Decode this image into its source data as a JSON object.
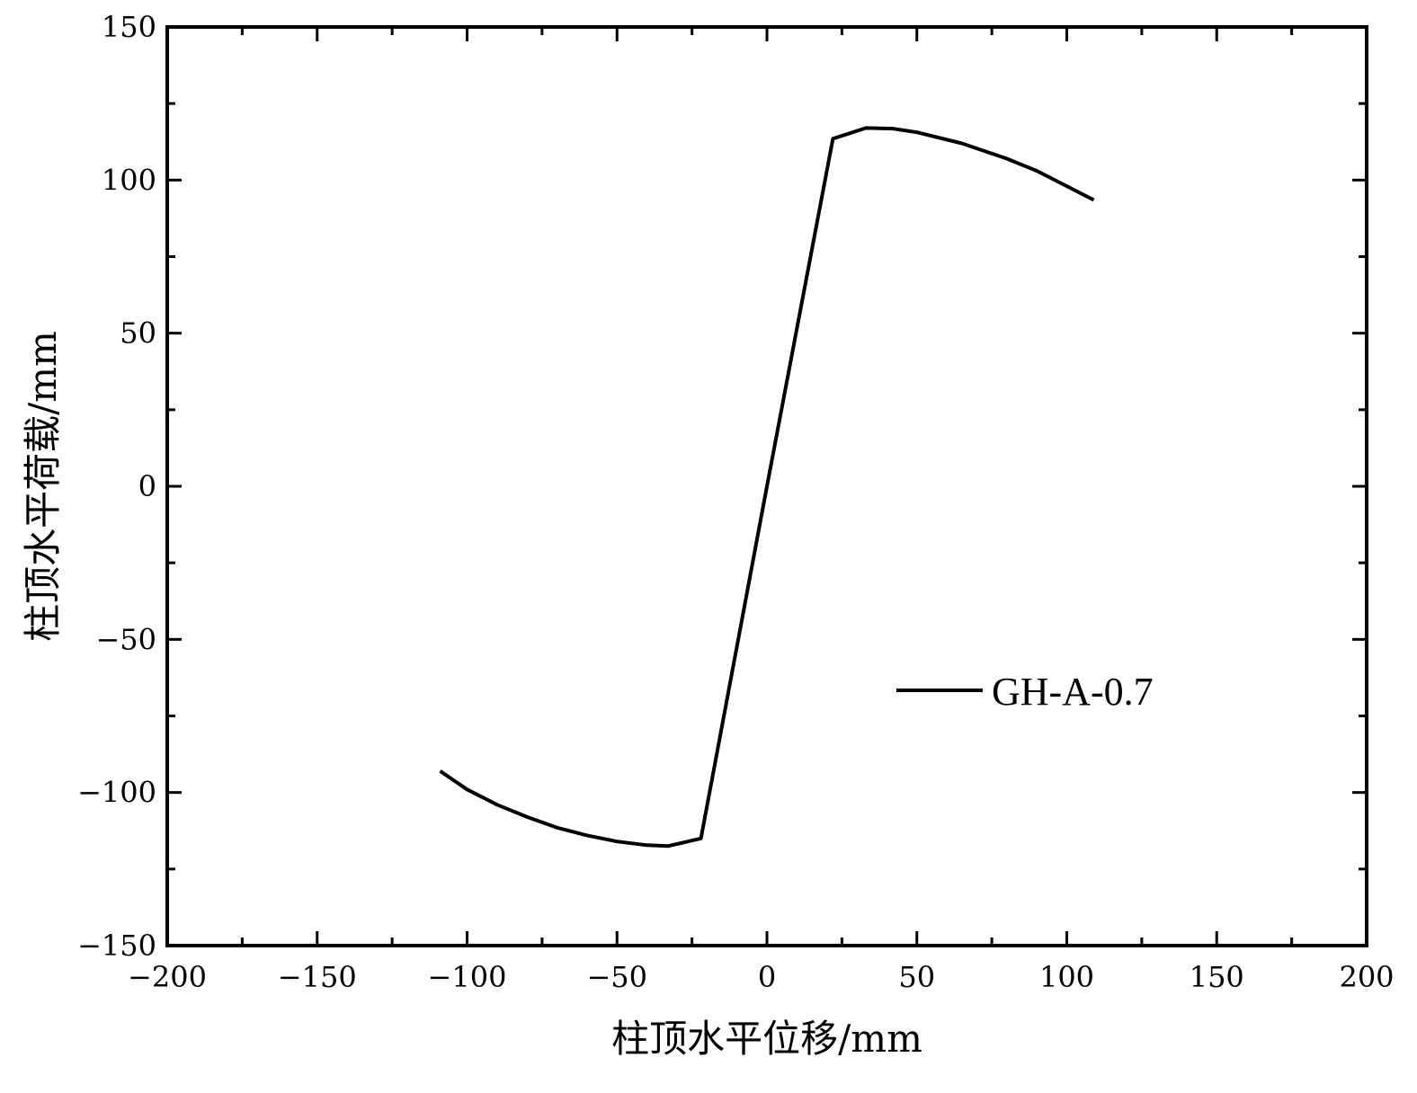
{
  "chart_data": {
    "type": "line",
    "title": "",
    "xlabel": "柱顶水平位移/mm",
    "ylabel": "柱顶水平荷载/mm",
    "xlim": [
      -200,
      200
    ],
    "ylim": [
      -150,
      150
    ],
    "xticks": [
      -200,
      -150,
      -100,
      -50,
      0,
      50,
      100,
      150,
      200
    ],
    "yticks": [
      -150,
      -100,
      -50,
      0,
      50,
      100,
      150
    ],
    "x_tick_labels": [
      "−200",
      "−150",
      "−100",
      "−50",
      "0",
      "50",
      "100",
      "150",
      "200"
    ],
    "y_tick_labels": [
      "−150",
      "−100",
      "−50",
      "0",
      "50",
      "100",
      "150"
    ],
    "grid": false,
    "legend_position": "center-right",
    "series": [
      {
        "name": "GH-A-0.7",
        "color": "#000000",
        "x": [
          -109,
          -100,
          -90,
          -80,
          -70,
          -60,
          -50,
          -40,
          -33,
          -22,
          0,
          22,
          33,
          42,
          50,
          65,
          80,
          90,
          100,
          109
        ],
        "y": [
          -93,
          -99,
          -104,
          -108,
          -111.5,
          -114,
          -116,
          -117.2,
          -117.5,
          -115,
          0,
          113.5,
          117,
          116.8,
          115.6,
          112,
          107,
          103,
          98,
          93.5
        ]
      }
    ]
  }
}
